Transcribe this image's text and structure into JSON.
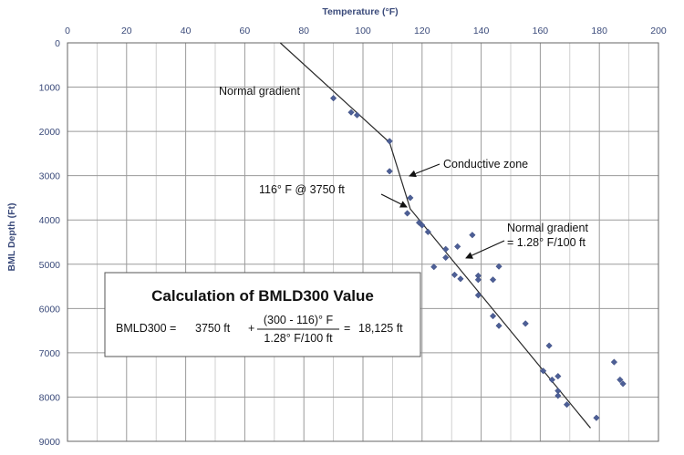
{
  "chart_data": {
    "type": "scatter",
    "title": "",
    "xlabel": "Temperature (°F)",
    "ylabel": "BML Depth (Ft)",
    "xlim": [
      0,
      200
    ],
    "ylim": [
      0,
      9000
    ],
    "y_inverted": true,
    "x_axis_position": "top",
    "grid": true,
    "x_ticks": [
      0,
      20,
      40,
      60,
      80,
      100,
      120,
      140,
      160,
      180,
      200
    ],
    "y_ticks": [
      0,
      1000,
      2000,
      3000,
      4000,
      5000,
      6000,
      7000,
      8000,
      9000
    ],
    "series": [
      {
        "points": [
          [
            90,
            1250
          ],
          [
            96,
            1570
          ],
          [
            98,
            1630
          ],
          [
            109,
            2220
          ],
          [
            109,
            2900
          ],
          [
            116,
            3500
          ],
          [
            115,
            3850
          ],
          [
            119,
            4060
          ],
          [
            120,
            4120
          ],
          [
            122,
            4270
          ],
          [
            137,
            4340
          ],
          [
            128,
            4660
          ],
          [
            132,
            4600
          ],
          [
            128,
            4850
          ],
          [
            124,
            5060
          ],
          [
            131,
            5240
          ],
          [
            133,
            5330
          ],
          [
            139,
            5260
          ],
          [
            139,
            5350
          ],
          [
            144,
            5350
          ],
          [
            146,
            5050
          ],
          [
            139,
            5700
          ],
          [
            144,
            6170
          ],
          [
            146,
            6390
          ],
          [
            155,
            6340
          ],
          [
            163,
            6840
          ],
          [
            161,
            7410
          ],
          [
            164,
            7610
          ],
          [
            166,
            7530
          ],
          [
            166,
            7860
          ],
          [
            166,
            7970
          ],
          [
            169,
            8170
          ],
          [
            179,
            8470
          ],
          [
            185,
            7210
          ],
          [
            187,
            7610
          ],
          [
            188,
            7700
          ]
        ]
      }
    ],
    "trend_line": [
      [
        72,
        0
      ],
      [
        109,
        2250
      ],
      [
        116,
        3750
      ],
      [
        177,
        8700
      ]
    ],
    "annotations": {
      "normal_gradient_upper": "Normal gradient",
      "conductive_zone": "Conductive zone",
      "marker_116": "116° F @ 3750 ft",
      "normal_gradient_lower_1": "Normal gradient",
      "normal_gradient_lower_2": "= 1.28° F/100 ft"
    },
    "calculation_box": {
      "title": "Calculation of BMLD300 Value",
      "lhs": "BMLD300 =",
      "term1": "3750 ft",
      "plus": "+",
      "numerator": "(300 - 116)° F",
      "denominator": "1.28° F/100 ft",
      "equals": "=",
      "result": "18,125 ft"
    }
  }
}
